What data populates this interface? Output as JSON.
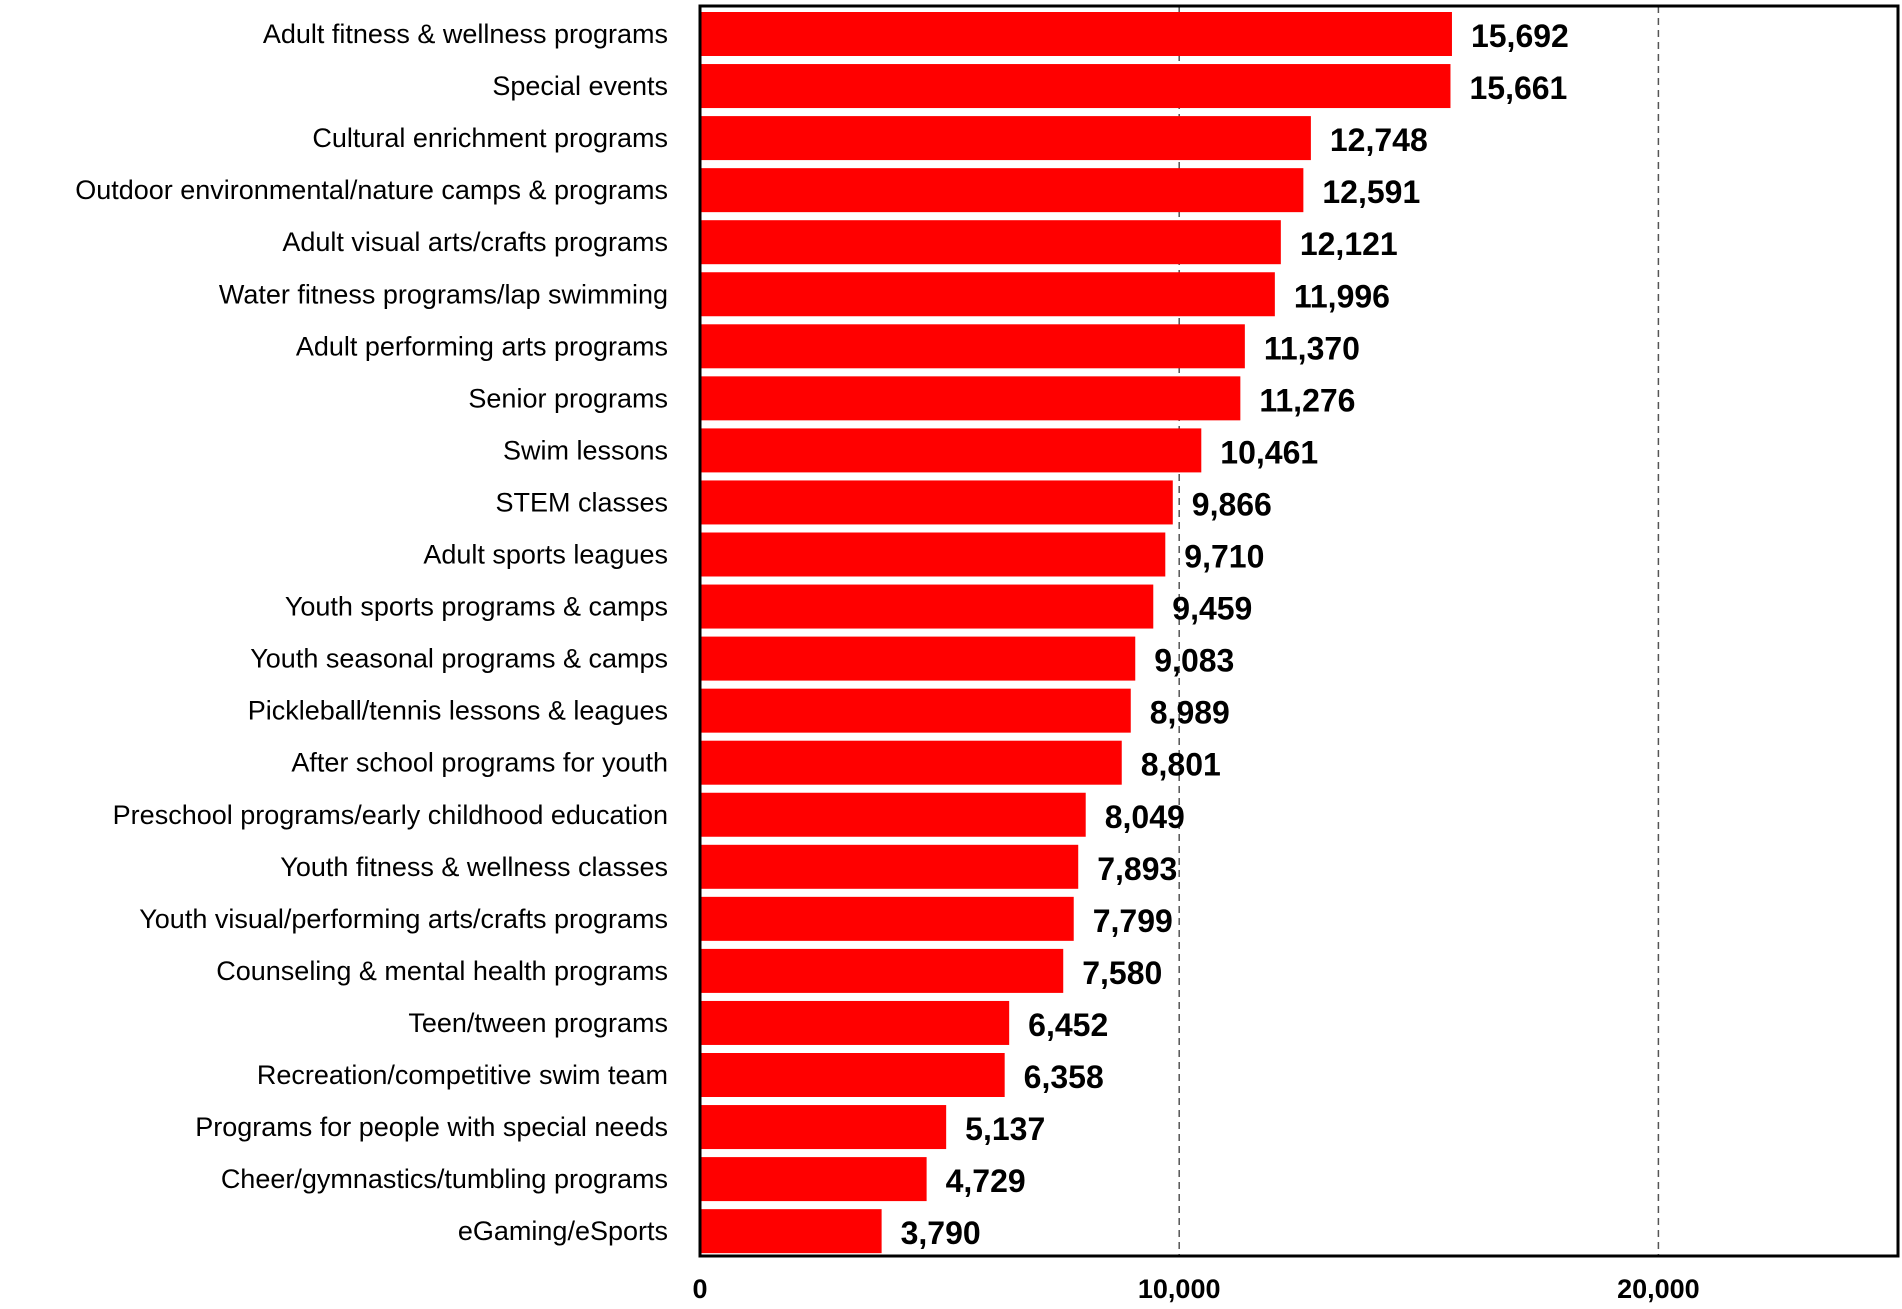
{
  "chart_data": {
    "type": "bar",
    "orientation": "horizontal",
    "title": "",
    "xlabel": "",
    "ylabel": "",
    "xlim": [
      0,
      25000
    ],
    "x_ticks": [
      0,
      10000,
      20000
    ],
    "x_tick_labels": [
      "0",
      "10,000",
      "20,000"
    ],
    "grid": "vertical dashed at 10,000 and 20,000",
    "bar_color": "#ff0000",
    "categories": [
      "Adult fitness & wellness programs",
      "Special events",
      "Cultural enrichment programs",
      "Outdoor environmental/nature camps & programs",
      "Adult visual arts/crafts programs",
      "Water fitness programs/lap swimming",
      "Adult performing arts programs",
      "Senior programs",
      "Swim lessons",
      "STEM classes",
      "Adult sports leagues",
      "Youth sports programs & camps",
      "Youth seasonal programs & camps",
      "Pickleball/tennis lessons & leagues",
      "After school programs for youth",
      "Preschool programs/early childhood education",
      "Youth fitness & wellness classes",
      "Youth visual/performing arts/crafts programs",
      "Counseling & mental health programs",
      "Teen/tween programs",
      "Recreation/competitive swim team",
      "Programs for people with special needs",
      "Cheer/gymnastics/tumbling programs",
      "eGaming/eSports"
    ],
    "values": [
      15692,
      15661,
      12748,
      12591,
      12121,
      11996,
      11370,
      11276,
      10461,
      9866,
      9710,
      9459,
      9083,
      8989,
      8801,
      8049,
      7893,
      7799,
      7580,
      6452,
      6358,
      5137,
      4729,
      3790
    ],
    "value_labels": [
      "15,692",
      "15,661",
      "12,748",
      "12,591",
      "12,121",
      "11,996",
      "11,370",
      "11,276",
      "10,461",
      "9,866",
      "9,710",
      "9,459",
      "9,083",
      "8,989",
      "8,801",
      "8,049",
      "7,893",
      "7,799",
      "7,580",
      "6,452",
      "6,358",
      "5,137",
      "4,729",
      "3,790"
    ]
  }
}
